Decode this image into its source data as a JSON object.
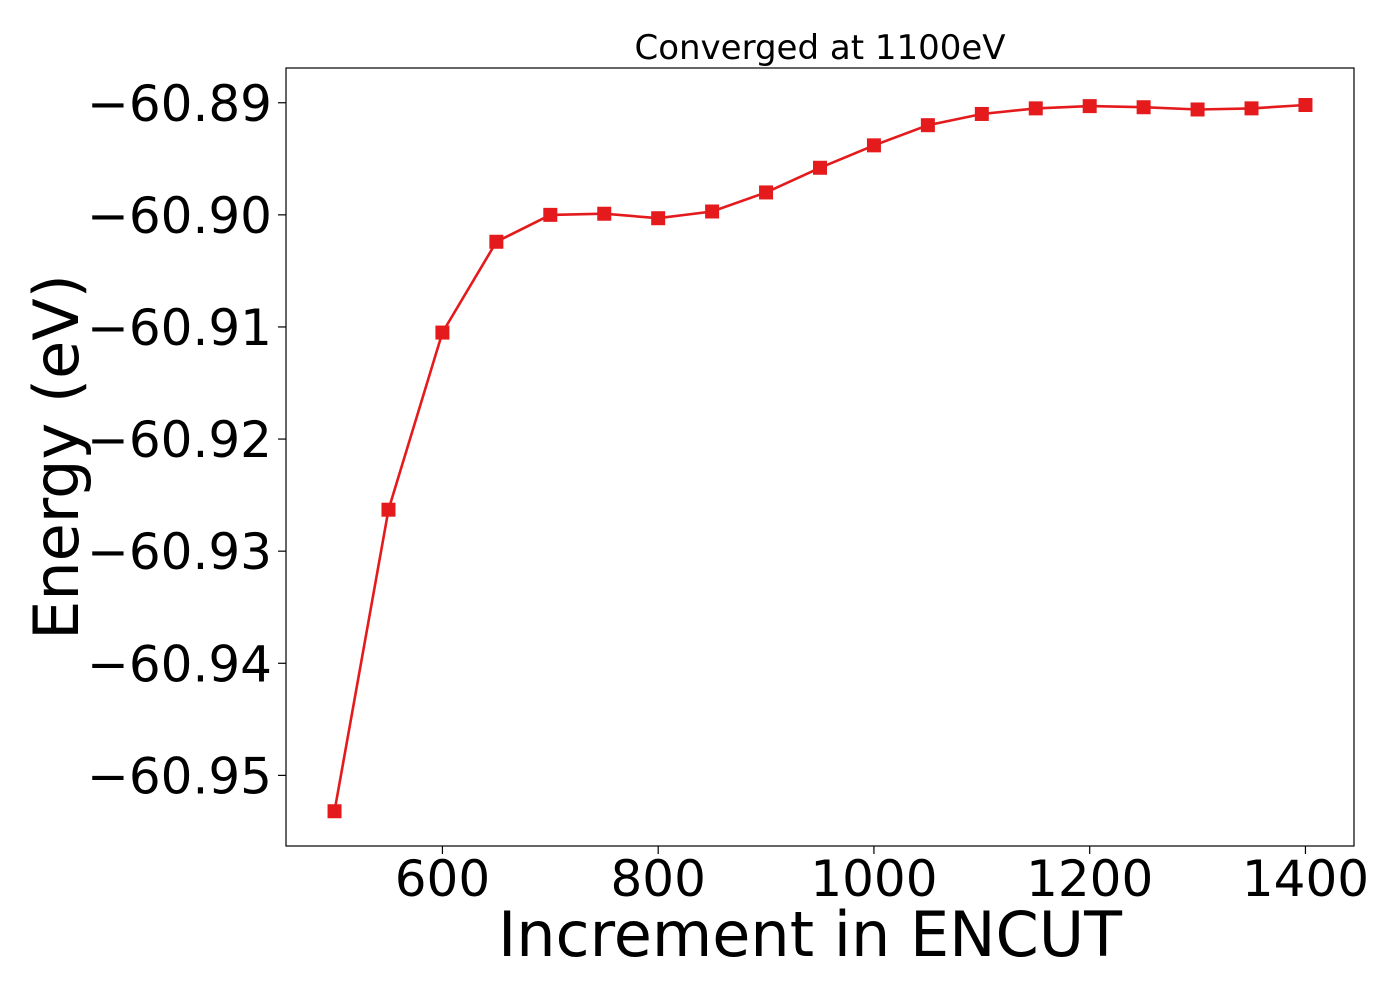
{
  "chart_data": {
    "type": "line",
    "title": "Converged at 1100eV",
    "xlabel": "Increment in ENCUT",
    "ylabel": "Energy (eV)",
    "xlim": [
      455,
      1445
    ],
    "ylim": [
      -60.9563,
      -60.8869
    ],
    "x_ticks": [
      600,
      800,
      1000,
      1200,
      1400
    ],
    "x_tick_labels": [
      "600",
      "800",
      "1000",
      "1200",
      "1400"
    ],
    "y_ticks": [
      -60.89,
      -60.9,
      -60.91,
      -60.92,
      -60.93,
      -60.94,
      -60.95
    ],
    "y_tick_labels": [
      "−60.89",
      "−60.90",
      "−60.91",
      "−60.92",
      "−60.93",
      "−60.94",
      "−60.95"
    ],
    "grid": false,
    "series": [
      {
        "color": "#e41a1c",
        "marker": "square",
        "x": [
          500,
          550,
          600,
          650,
          700,
          750,
          800,
          850,
          900,
          950,
          1000,
          1050,
          1100,
          1150,
          1200,
          1250,
          1300,
          1350,
          1400
        ],
        "y": [
          -60.9532,
          -60.9263,
          -60.9105,
          -60.9024,
          -60.9,
          -60.8999,
          -60.9003,
          -60.8997,
          -60.898,
          -60.8958,
          -60.8938,
          -60.892,
          -60.891,
          -60.8905,
          -60.8903,
          -60.8904,
          -60.8906,
          -60.8905,
          -60.8902
        ]
      }
    ]
  }
}
